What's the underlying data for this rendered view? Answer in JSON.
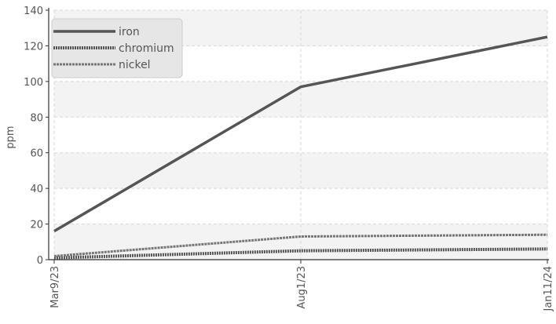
{
  "chart_data": {
    "type": "line",
    "x": [
      "Mar9/23",
      "Aug1/23",
      "Jan11/24"
    ],
    "ylabel": "ppm",
    "ylim": [
      0,
      140
    ],
    "yticks": [
      0,
      20,
      40,
      60,
      80,
      100,
      120,
      140
    ],
    "grid": true,
    "legend_position": "top-left",
    "series": [
      {
        "name": "iron",
        "values": [
          16,
          97,
          125
        ],
        "color": "#555555",
        "style": "solid"
      },
      {
        "name": "chromium",
        "values": [
          1,
          5,
          6
        ],
        "color": "#555555",
        "style": "dotted"
      },
      {
        "name": "nickel",
        "values": [
          2,
          13,
          14
        ],
        "color": "#777777",
        "style": "dashed"
      }
    ]
  }
}
